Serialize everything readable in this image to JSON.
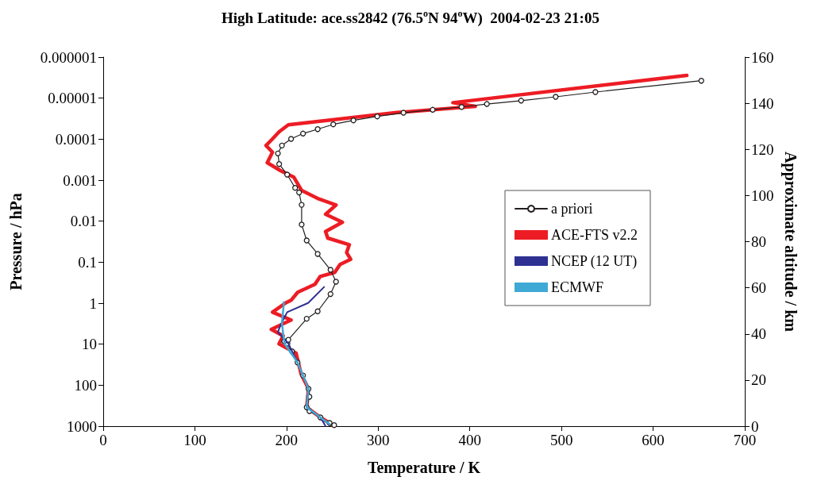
{
  "chart_data": {
    "type": "line",
    "title": "High Latitude: ace.ss2842 (76.5$^{o}$N 94$^{o}$W)  2004-02-23 21:05",
    "xlabel": "Temperature / K",
    "ylabel": "Pressure / hPa",
    "y2label": "Approximate altitude / km",
    "log": "y",
    "grid": false,
    "legend": "right",
    "xlim": [
      0,
      700
    ],
    "xticks": [
      0,
      100,
      200,
      300,
      400,
      500,
      600,
      700
    ],
    "ylim": [
      1000,
      1e-06
    ],
    "yticks": [
      {
        "value": 1e-06,
        "label": "0.000001"
      },
      {
        "value": 1e-05,
        "label": "0.00001"
      },
      {
        "value": 0.0001,
        "label": "0.0001"
      },
      {
        "value": 0.001,
        "label": "0.001"
      },
      {
        "value": 0.01,
        "label": "0.01"
      },
      {
        "value": 0.1,
        "label": "0.1"
      },
      {
        "value": 1,
        "label": "1"
      },
      {
        "value": 10,
        "label": "10"
      },
      {
        "value": 100,
        "label": "100"
      },
      {
        "value": 1000,
        "label": "1000"
      }
    ],
    "y2lim": [
      0,
      160
    ],
    "y2ticks": [
      0,
      20,
      40,
      60,
      80,
      100,
      120,
      140,
      160
    ],
    "series": [
      {
        "name": "a priori",
        "color": "#231f20",
        "marker": "circle",
        "x": [
          252,
          247,
          237,
          225,
          222,
          225,
          224,
          218,
          212,
          206,
          201,
          197.5,
          202,
          222,
          234,
          248,
          254,
          248,
          234,
          222,
          216.5,
          216.5,
          213.7,
          209.4,
          200.7,
          192,
          190.6,
          195,
          205,
          218,
          234,
          251,
          273,
          299,
          327.6,
          359.5,
          391,
          418.6,
          456,
          493.7,
          537,
          652.6
        ],
        "values": [
          944,
          837,
          612,
          429,
          347,
          192,
          123,
          58,
          28,
          15,
          9.7,
          8.5,
          7.8,
          2.4,
          1.58,
          0.6,
          0.3,
          0.154,
          0.063,
          0.0296,
          0.0121,
          0.004,
          0.002,
          0.00154,
          0.000733,
          0.000405,
          0.000223,
          0.000143,
          9.86e-05,
          7.31e-05,
          5.7e-05,
          4.36e-05,
          3.49e-05,
          2.79e-05,
          2.27e-05,
          1.92e-05,
          1.64e-05,
          1.39e-05,
          1.15e-05,
          9.29e-06,
          7.11e-06,
          3.76e-06
        ]
      },
      {
        "name": "ACE-FTS v2.2",
        "color": "#ed1c24",
        "marker": "none",
        "x": [
          252,
          237,
          222,
          224,
          216,
          210.4,
          191.8,
          196.3,
          183.4,
          205,
          184.7,
          199,
          205,
          212.2,
          231,
          236.8,
          252.6,
          258.4,
          270,
          265.6,
          268.5,
          245,
          242.6,
          261,
          242.6,
          254,
          234,
          216.6,
          208,
          193.4,
          179,
          184.7,
          177.6,
          184.7,
          192,
          202,
          320.5,
          406,
          381.5,
          636.8
        ],
        "values": [
          1000,
          612,
          347,
          123,
          54,
          16.6,
          9.8,
          6.3,
          4.35,
          2.58,
          1.66,
          0.99,
          0.85,
          0.543,
          0.348,
          0.223,
          0.178,
          0.114,
          0.085,
          0.0585,
          0.0375,
          0.0259,
          0.0179,
          0.0106,
          0.0068,
          0.00404,
          0.00279,
          0.00179,
          0.00085,
          0.000586,
          0.000376,
          0.000208,
          0.000143,
          9.86e-05,
          6.6e-05,
          4.48e-05,
          2.24e-05,
          1.59e-05,
          1.29e-05,
          2.79e-06
        ]
      },
      {
        "name": "NCEP (12 UT)",
        "color": "#2e3192",
        "marker": "none",
        "x": [
          242.6,
          237,
          222,
          224,
          212,
          202,
          190.6,
          193.4,
          200.7,
          223.6,
          241
        ],
        "values": [
          1000,
          612,
          347,
          123,
          28,
          9.7,
          5.05,
          3.48,
          1.66,
          0.99,
          0.404
        ]
      },
      {
        "name": "ECMWF",
        "color": "#3fa9d6",
        "marker": "none",
        "x": [
          247,
          237,
          222,
          224,
          212,
          197.8,
          196.3,
          195,
          197,
          197
        ],
        "values": [
          890,
          612,
          347,
          123,
          28,
          9.7,
          5.45,
          3.0,
          1.06,
          0.95
        ]
      }
    ]
  }
}
